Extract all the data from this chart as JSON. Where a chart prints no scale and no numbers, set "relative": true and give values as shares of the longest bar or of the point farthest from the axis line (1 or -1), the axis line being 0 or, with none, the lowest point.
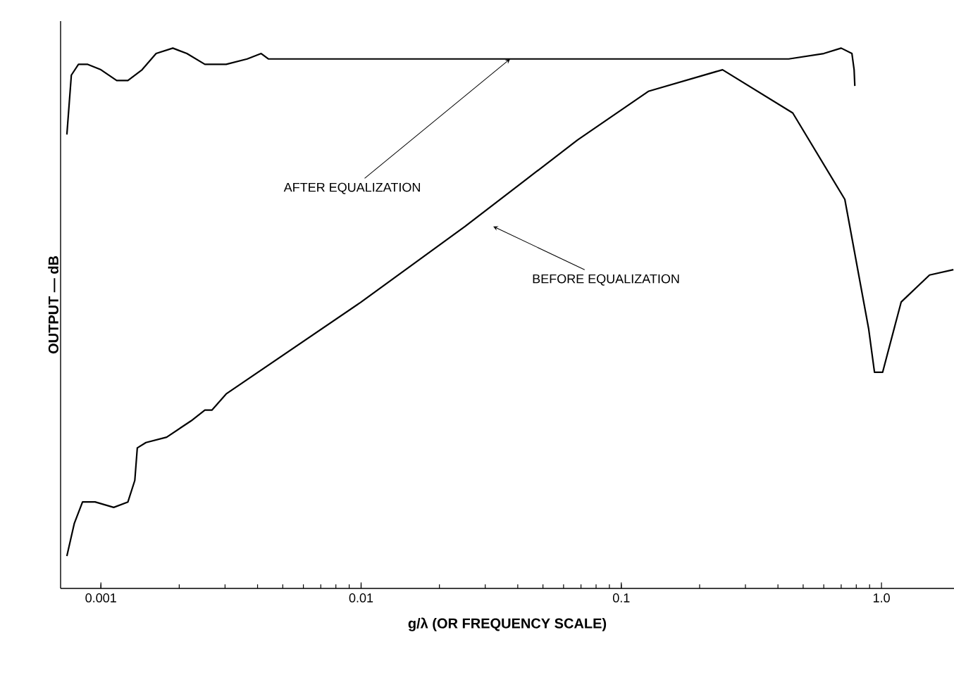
{
  "chart_data": {
    "type": "line",
    "relative": true,
    "log": "x",
    "xlabel": "g/λ (OR FREQUENCY SCALE)",
    "ylabel": "OUTPUT — dB",
    "xlim": [
      0.0007,
      1.9
    ],
    "xticks": [
      0.001,
      0.01,
      0.1,
      {
        "value": 1,
        "label": "1.0"
      }
    ],
    "series": [
      {
        "color": "#000000",
        "x": [
          0.00074,
          0.00077,
          0.00082,
          0.00089,
          0.001,
          0.00115,
          0.00127,
          0.00144,
          0.00163,
          0.00189,
          0.00214,
          0.00251,
          0.00303,
          0.00365,
          0.00413,
          0.0044,
          0.0173,
          0.1,
          0.44,
          0.6,
          0.7,
          0.77,
          0.785,
          0.79
        ],
        "values": [
          0.84,
          0.95,
          0.97,
          0.97,
          0.96,
          0.94,
          0.94,
          0.96,
          0.99,
          1.0,
          0.99,
          0.97,
          0.97,
          0.98,
          0.99,
          0.98,
          0.98,
          0.98,
          0.98,
          0.99,
          1.0,
          0.99,
          0.96,
          0.93
        ]
      },
      {
        "color": "#000000",
        "x": [
          0.00074,
          0.00079,
          0.00085,
          0.00095,
          0.00112,
          0.00127,
          0.00135,
          0.00138,
          0.00149,
          0.00179,
          0.00222,
          0.00251,
          0.00267,
          0.00303,
          0.01,
          0.0251,
          0.0679,
          0.127,
          0.245,
          0.456,
          0.723,
          0.893,
          0.94,
          1.01,
          1.19,
          1.53,
          1.89
        ],
        "values": [
          0.06,
          0.12,
          0.16,
          0.16,
          0.15,
          0.16,
          0.2,
          0.26,
          0.27,
          0.28,
          0.31,
          0.33,
          0.33,
          0.36,
          0.53,
          0.67,
          0.83,
          0.92,
          0.96,
          0.88,
          0.72,
          0.48,
          0.4,
          0.4,
          0.53,
          0.58,
          0.59
        ]
      }
    ],
    "annotations": [
      {
        "text": "AFTER EQUALIZATION",
        "x": 0.0374,
        "y": 0.98
      },
      {
        "text": "BEFORE EQUALIZATION",
        "x": 0.0322,
        "y": 0.67
      }
    ]
  }
}
